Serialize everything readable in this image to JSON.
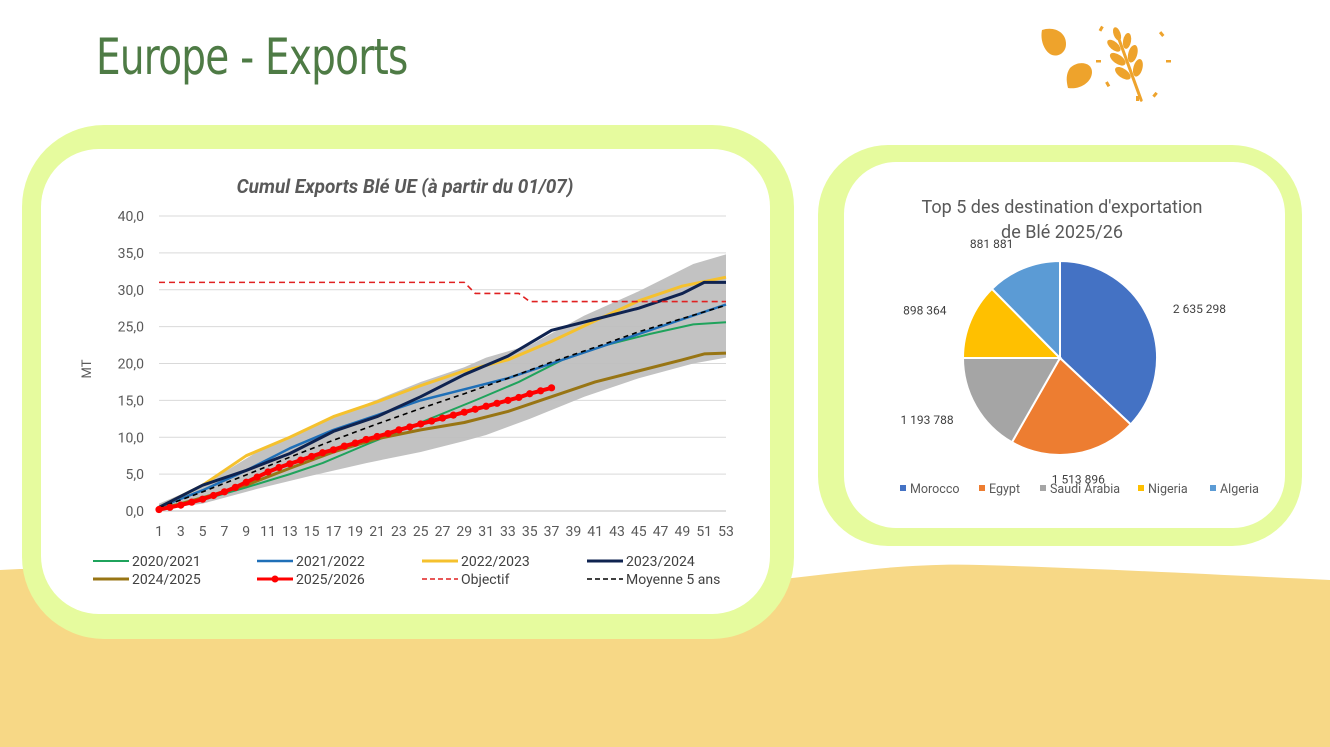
{
  "page": {
    "title": "Europe - Exports"
  },
  "colors": {
    "panel": "#e6fb9e",
    "sand": "#f7d886",
    "title": "#4e7b45",
    "logo": "#eea32c"
  },
  "icons": {
    "logo": "wheat-icon"
  },
  "chart_data": [
    {
      "type": "line",
      "title": "Cumul Exports Blé UE (à partir du 01/07)",
      "ylabel": "MT",
      "xlabel": "",
      "ylim": [
        0,
        40
      ],
      "yticks": [
        "0,0",
        "5,0",
        "10,0",
        "15,0",
        "20,0",
        "25,0",
        "30,0",
        "35,0",
        "40,0"
      ],
      "xlim": [
        1,
        53
      ],
      "xticks": [
        "1",
        "3",
        "5",
        "7",
        "9",
        "11",
        "13",
        "15",
        "17",
        "19",
        "21",
        "23",
        "25",
        "27",
        "29",
        "31",
        "33",
        "35",
        "37",
        "39",
        "41",
        "43",
        "45",
        "47",
        "49",
        "51",
        "53"
      ],
      "grid": true,
      "legend_position": "bottom",
      "band": {
        "description": "range",
        "x": [
          1,
          5,
          10,
          15,
          20,
          25,
          29,
          31,
          35,
          40,
          45,
          50,
          53
        ],
        "low": [
          0.2,
          1.0,
          3.0,
          4.8,
          6.5,
          8.0,
          9.5,
          10.3,
          12.5,
          15.5,
          18.0,
          20.0,
          20.8
        ],
        "high": [
          1.0,
          3.5,
          8.0,
          11.5,
          14.5,
          17.5,
          19.5,
          20.8,
          22.5,
          26.5,
          29.8,
          33.5,
          34.8
        ]
      },
      "series": [
        {
          "name": "2020/2021",
          "color": "#1fa35c",
          "width": 2,
          "dash": "",
          "x": [
            1,
            5,
            9,
            13,
            16,
            20,
            25,
            30,
            34,
            38,
            42,
            46,
            50,
            53
          ],
          "values": [
            0.5,
            1.5,
            3.2,
            5.0,
            6.5,
            9.0,
            12.0,
            15.0,
            17.5,
            20.5,
            22.5,
            24.0,
            25.3,
            25.6
          ]
        },
        {
          "name": "2021/2022",
          "color": "#1f6fb7",
          "width": 2.5,
          "dash": "",
          "x": [
            1,
            5,
            9,
            13,
            17,
            21,
            25,
            29,
            33,
            37,
            41,
            45,
            49,
            53
          ],
          "values": [
            0.5,
            2.8,
            5.5,
            8.5,
            11.0,
            13.0,
            15.0,
            16.5,
            18.0,
            20.0,
            22.0,
            24.0,
            26.0,
            28.0
          ]
        },
        {
          "name": "2022/2023",
          "color": "#f5c12e",
          "width": 3,
          "dash": "",
          "x": [
            1,
            5,
            9,
            13,
            17,
            21,
            25,
            29,
            33,
            37,
            41,
            45,
            49,
            53
          ],
          "values": [
            0.5,
            3.5,
            7.5,
            10.0,
            12.8,
            14.8,
            17.0,
            19.0,
            20.5,
            23.0,
            25.8,
            28.5,
            30.5,
            31.7
          ]
        },
        {
          "name": "2023/2024",
          "color": "#0f2350",
          "width": 3,
          "dash": "",
          "x": [
            1,
            5,
            9,
            13,
            17,
            21,
            25,
            29,
            33,
            37,
            41,
            45,
            49,
            51,
            53
          ],
          "values": [
            0.5,
            3.5,
            5.5,
            7.8,
            10.8,
            12.8,
            15.5,
            18.5,
            21.0,
            24.5,
            26.0,
            27.5,
            29.5,
            31.0,
            31.0
          ]
        },
        {
          "name": "2024/2025",
          "color": "#987514",
          "width": 3,
          "dash": "",
          "x": [
            1,
            5,
            9,
            13,
            17,
            21,
            25,
            29,
            33,
            37,
            41,
            45,
            49,
            51,
            53
          ],
          "values": [
            0.2,
            1.8,
            3.5,
            5.8,
            8.0,
            9.8,
            11.0,
            12.0,
            13.5,
            15.5,
            17.5,
            19.0,
            20.5,
            21.3,
            21.4
          ]
        },
        {
          "name": "2025/2026",
          "color": "#ff0000",
          "width": 4,
          "dash": "",
          "markers": true,
          "x": [
            1,
            2,
            3,
            4,
            5,
            6,
            7,
            8,
            9,
            10,
            11,
            12,
            13,
            14,
            15,
            16,
            17,
            18,
            19,
            20,
            21,
            22,
            23,
            24,
            25,
            26,
            27,
            28,
            29,
            30,
            31,
            32,
            33,
            34,
            35,
            36,
            37
          ],
          "values": [
            0.2,
            0.5,
            0.8,
            1.2,
            1.6,
            2.1,
            2.6,
            3.2,
            3.9,
            4.6,
            5.3,
            5.9,
            6.4,
            6.9,
            7.4,
            7.9,
            8.3,
            8.8,
            9.2,
            9.7,
            10.1,
            10.5,
            11.0,
            11.4,
            11.8,
            12.2,
            12.6,
            13.0,
            13.4,
            13.8,
            14.2,
            14.6,
            15.0,
            15.4,
            15.9,
            16.3,
            16.7
          ]
        },
        {
          "name": "Objectif",
          "color": "#e02020",
          "width": 1.6,
          "dash": "6 4",
          "x": [
            1,
            29,
            30,
            34,
            35,
            53
          ],
          "values": [
            31.0,
            31.0,
            29.5,
            29.5,
            28.4,
            28.4
          ]
        },
        {
          "name": "Moyenne 5 ans",
          "color": "#000000",
          "width": 1.6,
          "dash": "5 4",
          "x": [
            1,
            5,
            9,
            13,
            17,
            21,
            25,
            29,
            33,
            37,
            41,
            45,
            49,
            53
          ],
          "values": [
            0.4,
            2.6,
            4.9,
            7.3,
            9.6,
            11.8,
            13.9,
            15.9,
            18.0,
            20.2,
            22.2,
            24.3,
            26.1,
            27.9
          ]
        }
      ]
    },
    {
      "type": "pie",
      "title": "Top 5 des destination d'exportation de Blé 2025/26",
      "title_lines": [
        "Top 5 des destination d'exportation",
        "de Blé 2025/26"
      ],
      "legend_position": "bottom",
      "slices": [
        {
          "name": "Morocco",
          "value": 2635298,
          "label": "2 635 298",
          "color": "#4472c4"
        },
        {
          "name": "Egypt",
          "value": 1513896,
          "label": "1 513 896",
          "color": "#ed7d31"
        },
        {
          "name": "Saudi Arabia",
          "value": 1193788,
          "label": "1 193 788",
          "color": "#a5a5a5"
        },
        {
          "name": "Nigeria",
          "value": 898364,
          "label": "898 364",
          "color": "#ffc000"
        },
        {
          "name": "Algeria",
          "value": 881881,
          "label": "881 881",
          "color": "#5b9bd5"
        }
      ]
    }
  ]
}
